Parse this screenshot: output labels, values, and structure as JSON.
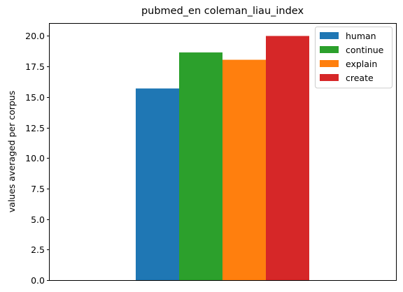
{
  "chart_data": {
    "type": "bar",
    "title": "pubmed_en coleman_liau_index",
    "xlabel": "",
    "ylabel": "values averaged per corpus",
    "ylim": [
      0,
      21
    ],
    "yticks": [
      0.0,
      2.5,
      5.0,
      7.5,
      10.0,
      12.5,
      15.0,
      17.5,
      20.0
    ],
    "ytick_labels": [
      "0.0",
      "2.5",
      "5.0",
      "7.5",
      "10.0",
      "12.5",
      "15.0",
      "17.5",
      "20.0"
    ],
    "grid": false,
    "legend_position": "top-right",
    "series": [
      {
        "name": "human",
        "value": 15.7,
        "color": "#1f77b4"
      },
      {
        "name": "continue",
        "value": 18.65,
        "color": "#2ca02c"
      },
      {
        "name": "explain",
        "value": 18.05,
        "color": "#ff7f0e"
      },
      {
        "name": "create",
        "value": 20.0,
        "color": "#d62728"
      }
    ]
  }
}
